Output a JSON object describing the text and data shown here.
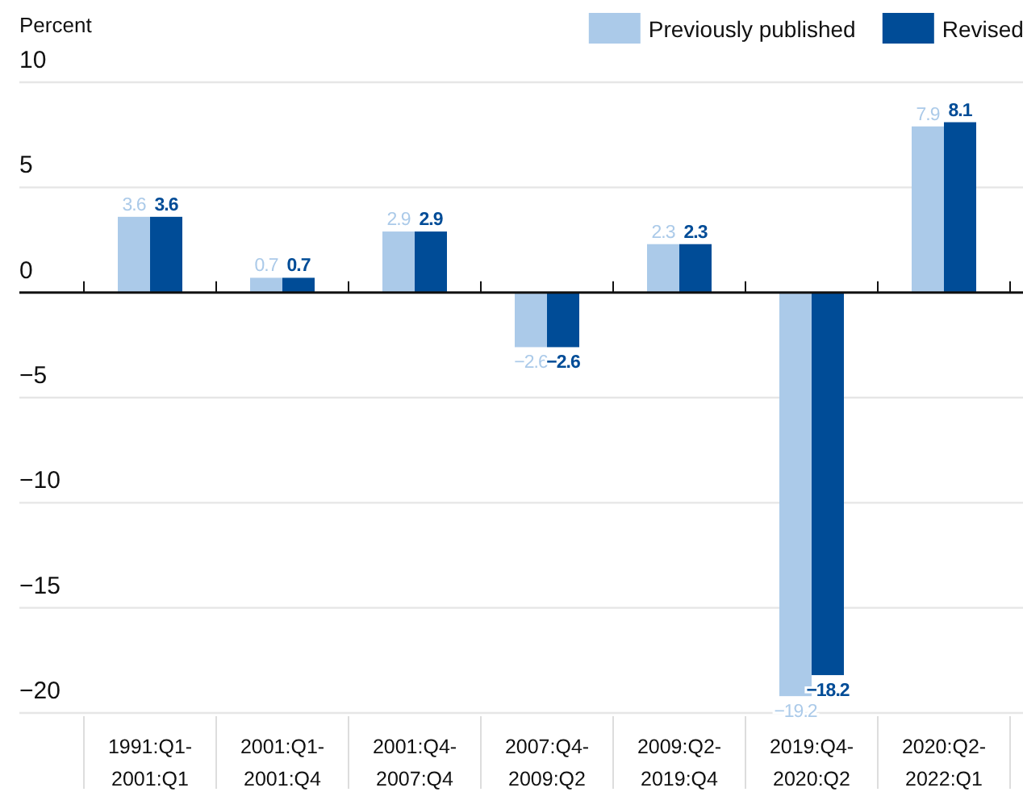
{
  "chart_data": {
    "type": "bar",
    "ylabel": "Percent",
    "categories": [
      "1991:Q1-2001:Q1",
      "2001:Q1-2001:Q4",
      "2001:Q4-2007:Q4",
      "2007:Q4-2009:Q2",
      "2009:Q2-2019:Q4",
      "2019:Q4-2020:Q2",
      "2020:Q2-2022:Q1"
    ],
    "series": [
      {
        "name": "Previously published",
        "color": "#abcae9",
        "values": [
          3.6,
          0.7,
          2.9,
          -2.6,
          2.3,
          -19.2,
          7.9
        ]
      },
      {
        "name": "Revised",
        "color": "#004c97",
        "values": [
          3.6,
          0.7,
          2.9,
          -2.6,
          2.3,
          -18.2,
          8.1
        ]
      }
    ],
    "ylim": [
      -20,
      10
    ],
    "yticks": [
      -20,
      -15,
      -10,
      -5,
      0,
      5,
      10
    ],
    "grid": "y",
    "legend": "top right",
    "data_labels": true
  }
}
